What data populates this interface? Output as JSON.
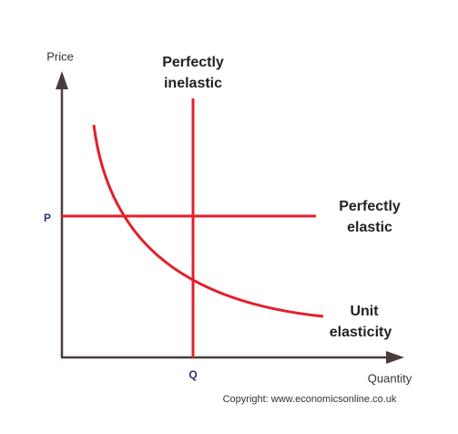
{
  "axes": {
    "y_label": "Price",
    "x_label": "Quantity",
    "y_marker": "P",
    "x_marker": "Q"
  },
  "curves": [
    {
      "label": [
        "Perfectly",
        "inelastic"
      ]
    },
    {
      "label": [
        "Perfectly",
        "elastic"
      ]
    },
    {
      "label": [
        "Unit",
        "elasticity"
      ]
    }
  ],
  "footer": {
    "copyright": "Copyright: www.economicsonline.co.uk"
  }
}
